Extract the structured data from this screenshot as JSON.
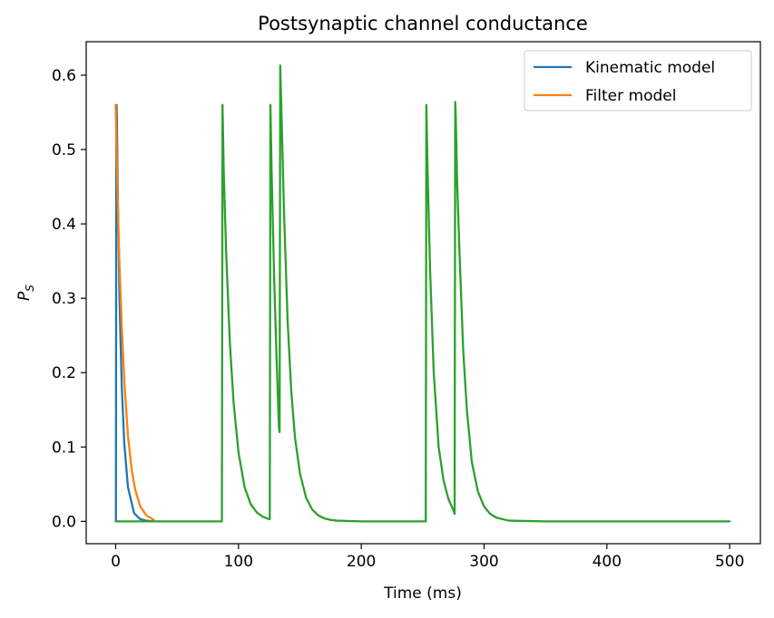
{
  "chart_data": {
    "type": "line",
    "title": "Postsynaptic channel conductance",
    "xlabel": "Time (ms)",
    "ylabel_main": "P",
    "ylabel_sub": "S",
    "xlim": [
      -24,
      525
    ],
    "ylim": [
      -0.03,
      0.645
    ],
    "x_ticks": [
      0,
      100,
      200,
      300,
      400,
      500
    ],
    "x_tick_labels": [
      "0",
      "100",
      "200",
      "300",
      "400",
      "500"
    ],
    "y_ticks": [
      0.0,
      0.1,
      0.2,
      0.3,
      0.4,
      0.5,
      0.6
    ],
    "y_tick_labels": [
      "0.0",
      "0.1",
      "0.2",
      "0.3",
      "0.4",
      "0.5",
      "0.6"
    ],
    "grid": false,
    "legend_position": "top-right",
    "series": [
      {
        "name": "Kinematic model",
        "color": "#1f77b4",
        "x": [
          0,
          0.2,
          0.5,
          0.8,
          1.0,
          1.5,
          2.0,
          3.0,
          4.0,
          5.0,
          7.0,
          10.0,
          15.0,
          20.0,
          25.0,
          30.0
        ],
        "y": [
          0.0,
          0.0,
          0.55,
          0.56,
          0.54,
          0.47,
          0.41,
          0.31,
          0.24,
          0.18,
          0.105,
          0.046,
          0.011,
          0.003,
          0.001,
          0.0
        ]
      },
      {
        "name": "Filter model",
        "color": "#ff7f0e",
        "x": [
          0,
          1,
          2,
          3,
          5,
          7,
          10,
          13,
          16,
          20,
          25,
          30,
          31
        ],
        "y": [
          0.56,
          0.48,
          0.41,
          0.35,
          0.26,
          0.19,
          0.115,
          0.07,
          0.042,
          0.02,
          0.008,
          0.003,
          0.002
        ]
      },
      {
        "name": "",
        "color": "#2ca02c",
        "x": [
          0,
          86.5,
          87,
          88,
          90,
          93,
          96,
          100,
          105,
          110,
          115,
          120,
          125,
          125.5,
          126,
          127,
          129,
          131,
          133,
          133.5,
          134,
          135,
          137,
          140,
          143,
          146,
          150,
          155,
          160,
          165,
          170,
          175,
          180,
          200,
          252.5,
          253,
          254,
          256,
          259,
          263,
          267,
          271,
          275,
          276,
          276.5,
          277,
          278,
          280,
          283,
          286,
          290,
          295,
          300,
          305,
          310,
          320,
          350,
          500
        ],
        "y": [
          0.0,
          0.0,
          0.56,
          0.47,
          0.36,
          0.24,
          0.16,
          0.093,
          0.046,
          0.023,
          0.012,
          0.006,
          0.003,
          0.003,
          0.56,
          0.47,
          0.33,
          0.22,
          0.125,
          0.12,
          0.613,
          0.55,
          0.42,
          0.27,
          0.175,
          0.113,
          0.065,
          0.032,
          0.016,
          0.008,
          0.004,
          0.002,
          0.001,
          0.0,
          0.0,
          0.56,
          0.47,
          0.34,
          0.2,
          0.1,
          0.055,
          0.03,
          0.015,
          0.01,
          0.564,
          0.54,
          0.46,
          0.36,
          0.23,
          0.15,
          0.08,
          0.04,
          0.02,
          0.01,
          0.005,
          0.001,
          0.0,
          0.0
        ]
      }
    ]
  }
}
